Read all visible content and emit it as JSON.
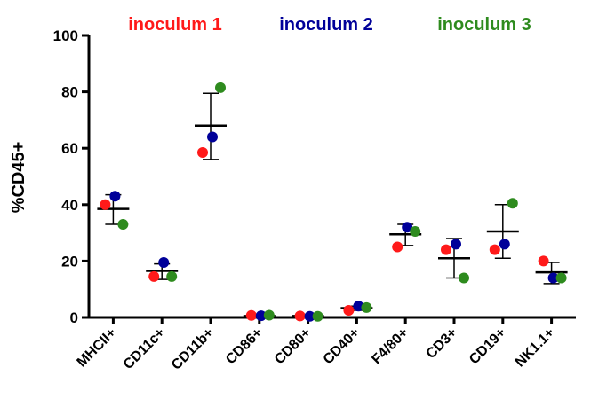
{
  "chart_data": {
    "type": "scatter",
    "ylabel": "%CD45+",
    "xlabel": "",
    "ylim": [
      0,
      100
    ],
    "yticks": [
      "0",
      "20",
      "40",
      "60",
      "80",
      "100"
    ],
    "ytick_values": [
      0,
      20,
      40,
      60,
      80,
      100
    ],
    "categories": [
      "MHCII+",
      "CD11c+",
      "CD11b+",
      "CD86+",
      "CD80+",
      "CD40+",
      "F4/80+",
      "CD3+",
      "CD19+",
      "NK1.1+"
    ],
    "legend_placement": "top",
    "grid": false,
    "series": [
      {
        "name": "inoculum 1",
        "color": "#ff1a1a",
        "values": [
          40,
          14.5,
          58.5,
          0.7,
          0.5,
          2.5,
          25,
          24,
          24,
          20
        ]
      },
      {
        "name": "inoculum 2",
        "color": "#000099",
        "values": [
          43,
          19.5,
          64,
          0.6,
          0.4,
          4,
          32,
          26,
          26,
          14
        ]
      },
      {
        "name": "inoculum 3",
        "color": "#2e8b1e",
        "values": [
          33,
          14.5,
          81.5,
          0.8,
          0.4,
          3.5,
          30.5,
          14,
          40.5,
          14
        ]
      }
    ],
    "summary": {
      "mean": [
        38.5,
        16.5,
        68,
        0.5,
        0.5,
        3.3,
        29.5,
        21,
        30.5,
        16
      ],
      "error_low": [
        33,
        13.5,
        56,
        0.3,
        0.3,
        2.5,
        25.5,
        14,
        21,
        12
      ],
      "error_high": [
        43.5,
        19,
        79.5,
        0.8,
        0.6,
        4,
        33,
        28,
        40,
        19.5
      ]
    }
  }
}
